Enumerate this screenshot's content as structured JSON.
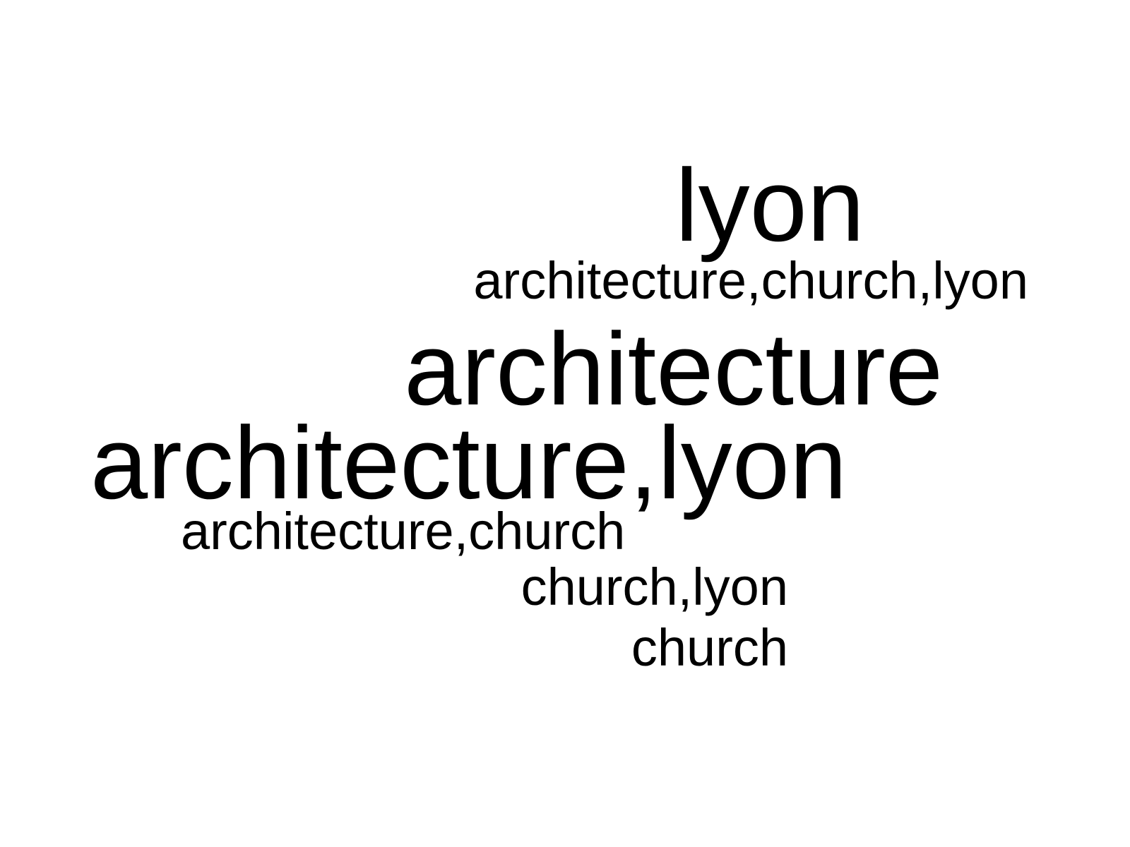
{
  "word_cloud": {
    "words": [
      {
        "text": "lyon"
      },
      {
        "text": "architecture,church,lyon"
      },
      {
        "text": "architecture"
      },
      {
        "text": "architecture,lyon"
      },
      {
        "text": "architecture,church"
      },
      {
        "text": "church,lyon"
      },
      {
        "text": "church"
      }
    ],
    "colors": {
      "text": "#000000",
      "background": "#ffffff"
    }
  }
}
